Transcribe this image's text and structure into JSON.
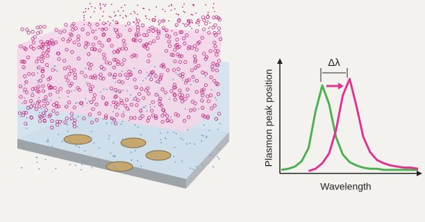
{
  "chart_data": {
    "type": "line",
    "xlabel": "Wavelength",
    "ylabel": "Plasmon peak position",
    "annotation": "Δλ",
    "x": [
      0,
      5,
      10,
      15,
      20,
      25,
      30,
      35,
      40,
      45,
      50,
      55,
      60,
      65,
      70,
      75,
      80,
      85,
      90,
      95,
      100
    ],
    "xlim": [
      0,
      100
    ],
    "ylim": [
      0,
      100
    ],
    "series": [
      {
        "color": "#4caf50",
        "values": [
          2,
          3,
          5,
          10,
          22,
          55,
          79,
          62,
          32,
          16,
          9,
          6,
          4,
          3,
          3,
          2,
          2,
          2,
          2,
          2,
          2
        ]
      },
      {
        "color": "#e0338f",
        "values": [
          null,
          null,
          null,
          null,
          1,
          3,
          8,
          17,
          38,
          70,
          85,
          60,
          32,
          18,
          11,
          8,
          6,
          5,
          4,
          4,
          3
        ]
      }
    ]
  }
}
